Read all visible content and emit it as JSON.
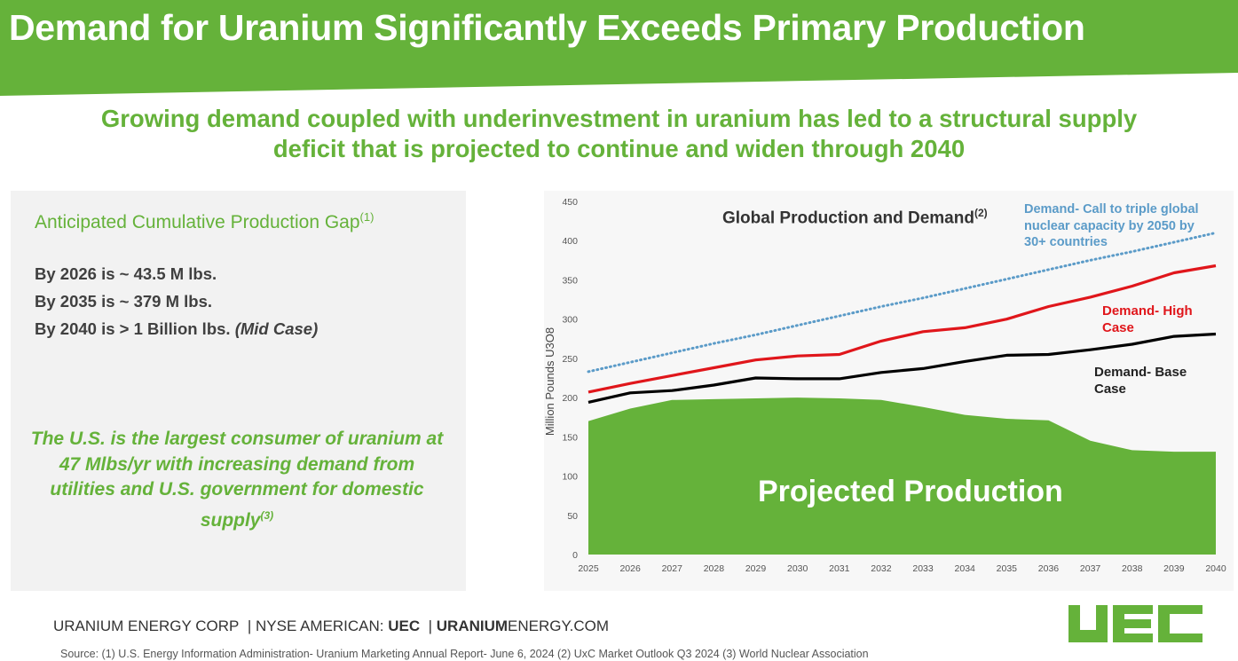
{
  "header": {
    "title": "Demand for Uranium Significantly Exceeds Primary Production",
    "subtitle_line1": "Growing demand coupled with underinvestment in uranium has led to a structural supply",
    "subtitle_line2": "deficit that is projected to continue and widen through 2040",
    "brand_color": "#65b23a"
  },
  "left_panel": {
    "title": "Anticipated Cumulative Production Gap",
    "title_note": "(1)",
    "lines": [
      {
        "text": "By 2026 is ~ 43.5 M lbs.",
        "suffix": ""
      },
      {
        "text": "By 2035 is ~ 379 M lbs.",
        "suffix": ""
      },
      {
        "text": "By 2040 is > 1 Billion lbs. ",
        "suffix": "(Mid Case)"
      }
    ],
    "us_text": "The U.S. is the largest consumer of uranium at 47 Mlbs/yr with increasing demand from utilities and U.S. government for domestic supply",
    "us_note": "(3)"
  },
  "chart_data": {
    "type": "line",
    "title": "Global Production and Demand",
    "title_note": "(2)",
    "ylabel": "Million Pounds U3O8",
    "xlabel": "",
    "ylim": [
      0,
      450
    ],
    "yticks": [
      0,
      50,
      100,
      150,
      200,
      250,
      300,
      350,
      400,
      450
    ],
    "grid": false,
    "x": [
      2025,
      2026,
      2027,
      2028,
      2029,
      2030,
      2031,
      2032,
      2033,
      2034,
      2035,
      2036,
      2037,
      2038,
      2039,
      2040
    ],
    "series": [
      {
        "name": "Projected Production",
        "kind": "area",
        "color": "#65b23a",
        "values": [
          170,
          186,
          197,
          198,
          199,
          200,
          199,
          197,
          188,
          178,
          173,
          171,
          145,
          133,
          131,
          131
        ]
      },
      {
        "name": "Demand- Base Case",
        "kind": "line",
        "color": "#000000",
        "values": [
          194,
          206,
          209,
          216,
          225,
          224,
          224,
          232,
          237,
          246,
          254,
          255,
          261,
          268,
          278,
          281
        ]
      },
      {
        "name": "Demand- High Case",
        "kind": "line",
        "color": "#e0161b",
        "values": [
          207,
          218,
          228,
          238,
          248,
          253,
          255,
          272,
          284,
          289,
          300,
          316,
          328,
          342,
          359,
          368
        ]
      },
      {
        "name": "Demand- Call to triple global nuclear capacity by 2050 by 30+ countries",
        "kind": "dotted",
        "color": "#5b9bc8",
        "values": [
          233,
          245,
          257,
          269,
          280,
          292,
          304,
          316,
          327,
          339,
          351,
          363,
          375,
          386,
          398,
          410
        ]
      }
    ],
    "labels": {
      "production": "Projected Production",
      "base_1": "Demand- Base",
      "base_2": "Case",
      "high_1": "Demand- High",
      "high_2": "Case",
      "triple_1": "Demand- Call to triple global",
      "triple_2": "nuclear capacity by 2050 by",
      "triple_3": "30+ countries"
    }
  },
  "footer": {
    "company": "URANIUM ENERGY CORP",
    "exchange": "NYSE AMERICAN:",
    "ticker": "UEC",
    "site_bold": "URANIUM",
    "site_rest": "ENERGY.COM",
    "source": "Source: (1) U.S. Energy Information Administration- Uranium Marketing Annual Report- June 6, 2024 (2) UxC Market Outlook Q3 2024 (3) World Nuclear Association",
    "logo_text": "UEC"
  }
}
